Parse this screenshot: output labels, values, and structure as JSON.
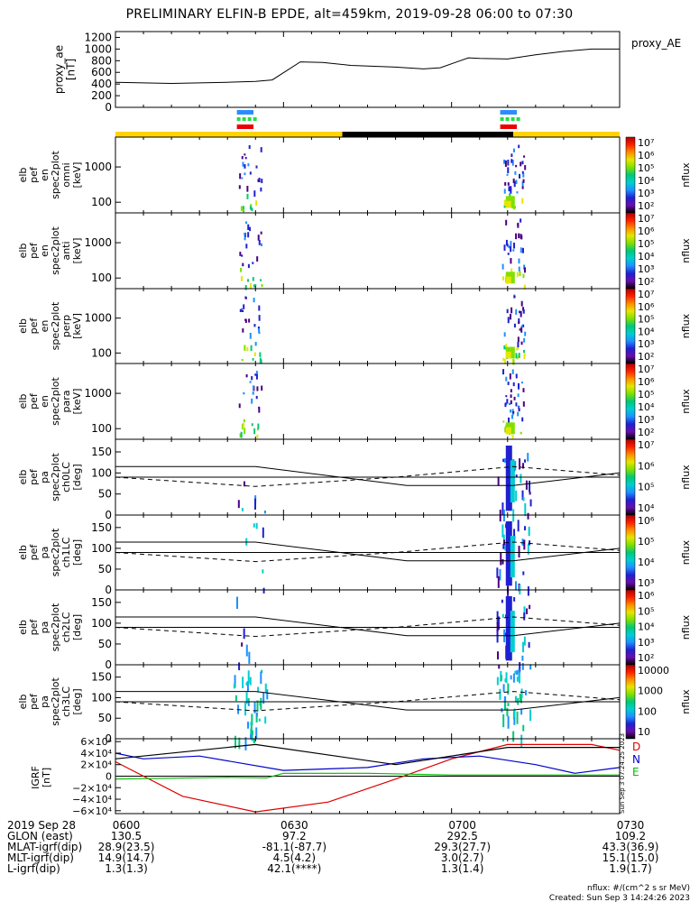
{
  "title": "PRELIMINARY ELFIN-B EPDE, alt=459km, 2019-09-28 06:00 to 07:30",
  "colors": {
    "orbit_day": "#ffd400",
    "orbit_shadow": "#000000",
    "igrf_d": "#dd0000",
    "igrf_n": "#0000cc",
    "igrf_e": "#00bb00",
    "science_bars": [
      "#2b8cff",
      "#22dd44",
      "#ee0000"
    ]
  },
  "panels": {
    "proxy_ae": {
      "ylabel": [
        "proxy_ae",
        "[nT]"
      ],
      "legend": "proxy_AE",
      "ticks": [
        "0",
        "200",
        "400",
        "600",
        "800",
        "1000",
        "1200"
      ]
    },
    "spec": [
      {
        "ylabel": [
          "elb",
          "pef",
          "en",
          "spec2plot",
          "omni",
          "[keV]"
        ],
        "ticks": [
          "100",
          "1000"
        ]
      },
      {
        "ylabel": [
          "elb",
          "pef",
          "en",
          "spec2plot",
          "anti",
          "[keV]"
        ],
        "ticks": [
          "100",
          "1000"
        ]
      },
      {
        "ylabel": [
          "elb",
          "pef",
          "en",
          "spec2plot",
          "perp",
          "[keV]"
        ],
        "ticks": [
          "100",
          "1000"
        ]
      },
      {
        "ylabel": [
          "elb",
          "pef",
          "en",
          "spec2plot",
          "para",
          "[keV]"
        ],
        "ticks": [
          "100",
          "1000"
        ]
      },
      {
        "ylabel": [
          "elb",
          "pef",
          "pa",
          "spec2plot",
          "ch0LC",
          "[deg]"
        ],
        "ticks": [
          "0",
          "50",
          "100",
          "150"
        ]
      },
      {
        "ylabel": [
          "elb",
          "pef",
          "pa",
          "spec2plot",
          "ch1LC",
          "[deg]"
        ],
        "ticks": [
          "0",
          "50",
          "100",
          "150"
        ]
      },
      {
        "ylabel": [
          "elb",
          "pef",
          "pa",
          "spec2plot",
          "ch2LC",
          "[deg]"
        ],
        "ticks": [
          "0",
          "50",
          "100",
          "150"
        ]
      },
      {
        "ylabel": [
          "elb",
          "pef",
          "pa",
          "spec2plot",
          "ch3LC",
          "[deg]"
        ],
        "ticks": [
          "0",
          "50",
          "100",
          "150"
        ]
      }
    ],
    "colorbars": [
      {
        "label": "nflux",
        "ticks": [
          "10²",
          "10³",
          "10⁴",
          "10⁵",
          "10⁶",
          "10⁷"
        ]
      },
      {
        "label": "nflux",
        "ticks": [
          "10²",
          "10³",
          "10⁴",
          "10⁵",
          "10⁶",
          "10⁷"
        ]
      },
      {
        "label": "nflux",
        "ticks": [
          "10²",
          "10³",
          "10⁴",
          "10⁵",
          "10⁶",
          "10⁷"
        ]
      },
      {
        "label": "nflux",
        "ticks": [
          "10²",
          "10³",
          "10⁴",
          "10⁵",
          "10⁶",
          "10⁷"
        ]
      },
      {
        "label": "nflux",
        "ticks": [
          "10⁴",
          "10⁵",
          "10⁶",
          "10⁷"
        ]
      },
      {
        "label": "nflux",
        "ticks": [
          "10³",
          "10⁴",
          "10⁵",
          "10⁶"
        ]
      },
      {
        "label": "nflux",
        "ticks": [
          "10²",
          "10³",
          "10⁴",
          "10⁵",
          "10⁶"
        ]
      },
      {
        "label": "nflux",
        "ticks": [
          "10",
          "100",
          "1000",
          "10000"
        ]
      }
    ],
    "igrf": {
      "ylabel": [
        "IGRF",
        "[nT]"
      ],
      "ticks": [
        "−6×10⁴",
        "−4×10⁴",
        "−2×10⁴",
        "0",
        "2×10⁴",
        "4×10⁴",
        "6×10⁴"
      ],
      "legend": [
        "D",
        "N",
        "E"
      ],
      "side_note": "Sun Sep 3 07:24:25 2023"
    }
  },
  "time_labels": [
    "0600",
    "0630",
    "0700",
    "0730"
  ],
  "footer_rows": [
    {
      "label": "2019 Sep 28",
      "values": [
        "0600",
        "0630",
        "0700",
        "0730"
      ]
    },
    {
      "label": "GLON (east)",
      "values": [
        "130.5",
        "97.2",
        "292.5",
        "109.2"
      ]
    },
    {
      "label": "MLAT-igrf(dip)",
      "values": [
        "28.9(23.5)",
        "-81.1(-87.7)",
        "29.3(27.7)",
        "43.3(36.9)"
      ]
    },
    {
      "label": "MLT-igrf(dip)",
      "values": [
        "14.9(14.7)",
        "4.5(4.2)",
        "3.0(2.7)",
        "15.1(15.0)"
      ]
    },
    {
      "label": "L-igrf(dip)",
      "values": [
        "1.3(1.3)",
        "42.1(****)",
        "1.3(1.4)",
        "1.9(1.7)"
      ]
    }
  ],
  "footer_note": [
    "nflux: #/(cm^2 s sr MeV)",
    "Created: Sun Sep  3 14:24:26 2023"
  ],
  "chart_data": {
    "type": "line",
    "x_unit": "UT",
    "x_range": [
      "2019-09-28 06:00",
      "2019-09-28 07:30"
    ],
    "proxy_ae": {
      "ylim": [
        0,
        1300
      ],
      "x": [
        "06:00",
        "06:10",
        "06:20",
        "06:25",
        "06:28",
        "06:33",
        "06:37",
        "06:42",
        "06:50",
        "06:55",
        "06:58",
        "07:03",
        "07:05",
        "07:10",
        "07:15",
        "07:20",
        "07:25",
        "07:30"
      ],
      "values": [
        430,
        410,
        430,
        445,
        470,
        780,
        770,
        720,
        690,
        660,
        680,
        850,
        840,
        830,
        900,
        960,
        1000,
        1000
      ]
    },
    "science_zones_utc": [
      [
        "06:22",
        "06:24"
      ],
      [
        "07:09",
        "07:11"
      ]
    ],
    "energy_spectra": {
      "ylabel_unit": "keV",
      "y_scale": "log",
      "ylim": [
        50,
        7000
      ],
      "channels": [
        "omni",
        "anti",
        "perp",
        "para"
      ],
      "colorbar": {
        "label": "nflux",
        "range": [
          100,
          10000000
        ],
        "scale": "log"
      }
    },
    "pitch_angle_spectra": {
      "ylabel_unit": "deg",
      "ylim": [
        0,
        180
      ],
      "channels": [
        "ch0LC",
        "ch1LC",
        "ch2LC",
        "ch3LC"
      ],
      "loss_cone_solid": {
        "x": [
          "06:00",
          "06:25",
          "06:52",
          "07:11",
          "07:30"
        ],
        "values": [
          115,
          115,
          70,
          70,
          100
        ]
      },
      "anti_loss_cone_dashed": {
        "x": [
          "06:00",
          "06:25",
          "06:50",
          "07:11",
          "07:30"
        ],
        "values": [
          90,
          68,
          90,
          115,
          95
        ]
      },
      "reference_90": 90
    },
    "igrf": {
      "ylim": [
        -65000,
        65000
      ],
      "series": [
        {
          "name": "D",
          "x": [
            "06:00",
            "06:12",
            "06:25",
            "06:38",
            "06:50",
            "07:00",
            "07:10",
            "07:25",
            "07:30"
          ],
          "values": [
            25000,
            -35000,
            -62000,
            -45000,
            -5000,
            30000,
            55000,
            55000,
            45000
          ]
        },
        {
          "name": "N",
          "x": [
            "06:00",
            "06:05",
            "06:15",
            "06:30",
            "06:45",
            "06:55",
            "07:05",
            "07:15",
            "07:22",
            "07:30"
          ],
          "values": [
            40000,
            30000,
            35000,
            10000,
            15000,
            30000,
            35000,
            20000,
            5000,
            15000
          ]
        },
        {
          "name": "E",
          "x": [
            "06:00",
            "06:20",
            "06:27",
            "06:30",
            "06:45",
            "07:00",
            "07:30"
          ],
          "values": [
            -5000,
            -2000,
            -3000,
            5000,
            5000,
            2000,
            2000
          ]
        }
      ]
    }
  }
}
